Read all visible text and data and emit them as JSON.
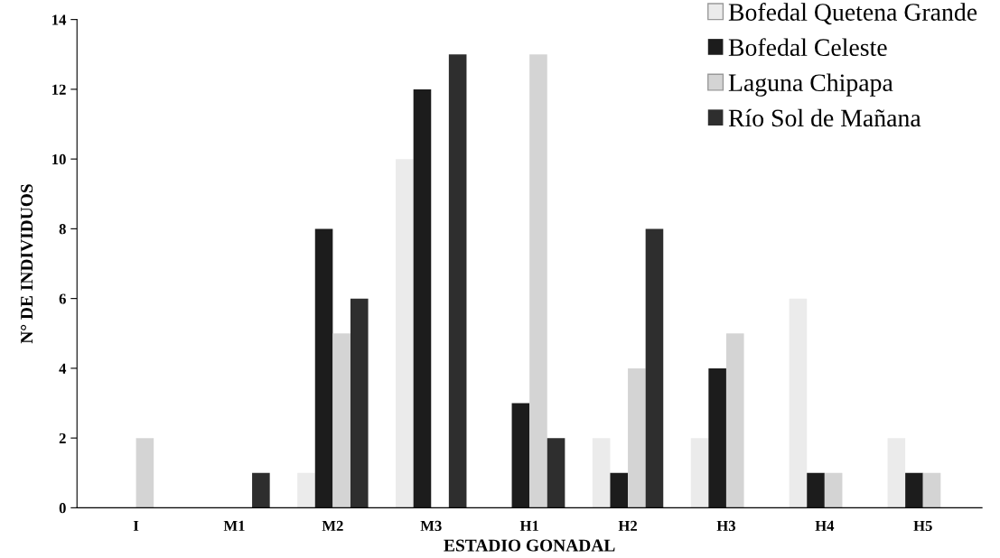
{
  "chart_data": {
    "type": "bar",
    "xlabel": "ESTADIO GONADAL",
    "ylabel": "N° DE INDIVIDUOS",
    "categories": [
      "I",
      "M1",
      "M2",
      "M3",
      "H1",
      "H2",
      "H3",
      "H4",
      "H5"
    ],
    "series": [
      {
        "name": "Bofedal Quetena Grande",
        "color": "#ebebeb",
        "values": [
          0,
          0,
          1,
          10,
          0,
          2,
          2,
          6,
          2
        ]
      },
      {
        "name": "Bofedal Celeste",
        "color": "#1c1c1c",
        "values": [
          0,
          0,
          8,
          12,
          3,
          1,
          4,
          1,
          1
        ]
      },
      {
        "name": "Laguna Chipapa",
        "color": "#d4d4d4",
        "values": [
          2,
          0,
          5,
          0,
          13,
          4,
          5,
          1,
          1
        ]
      },
      {
        "name": "Río Sol de Mañana",
        "color": "#2e2e2e",
        "values": [
          0,
          1,
          6,
          13,
          2,
          8,
          0,
          0,
          0
        ]
      }
    ],
    "ylim": [
      0,
      14
    ],
    "yticks": [
      0,
      2,
      4,
      6,
      8,
      10,
      12,
      14
    ],
    "grid": false,
    "legend": "top right"
  }
}
